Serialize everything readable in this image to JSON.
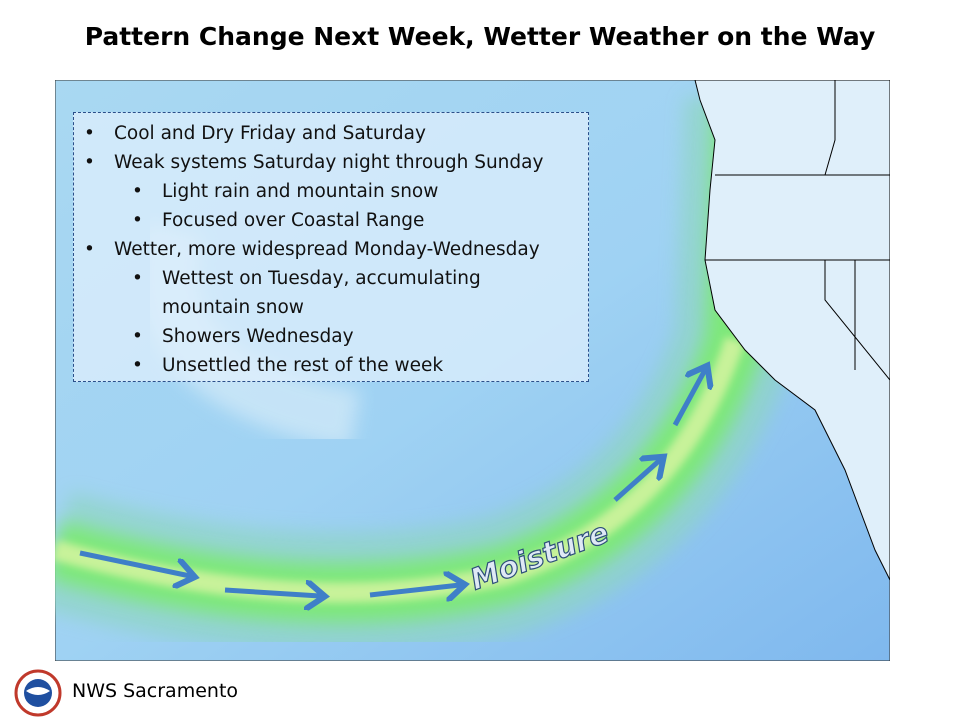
{
  "title": "Pattern Change Next Week, Wetter Weather on the Way",
  "bullets": [
    {
      "text": "Cool and Dry Friday and Saturday",
      "sub": []
    },
    {
      "text": "Weak systems Saturday night through Sunday",
      "sub": [
        "Light rain and mountain snow",
        "Focused over Coastal Range"
      ]
    },
    {
      "text": "Wetter, more widespread Monday-Wednesday",
      "sub": [
        "Wettest on Tuesday, accumulating mountain snow",
        "Showers Wednesday",
        "Unsettled the rest of the week"
      ]
    }
  ],
  "map": {
    "label": "Moisture"
  },
  "footer": {
    "text": "NWS Sacramento"
  }
}
